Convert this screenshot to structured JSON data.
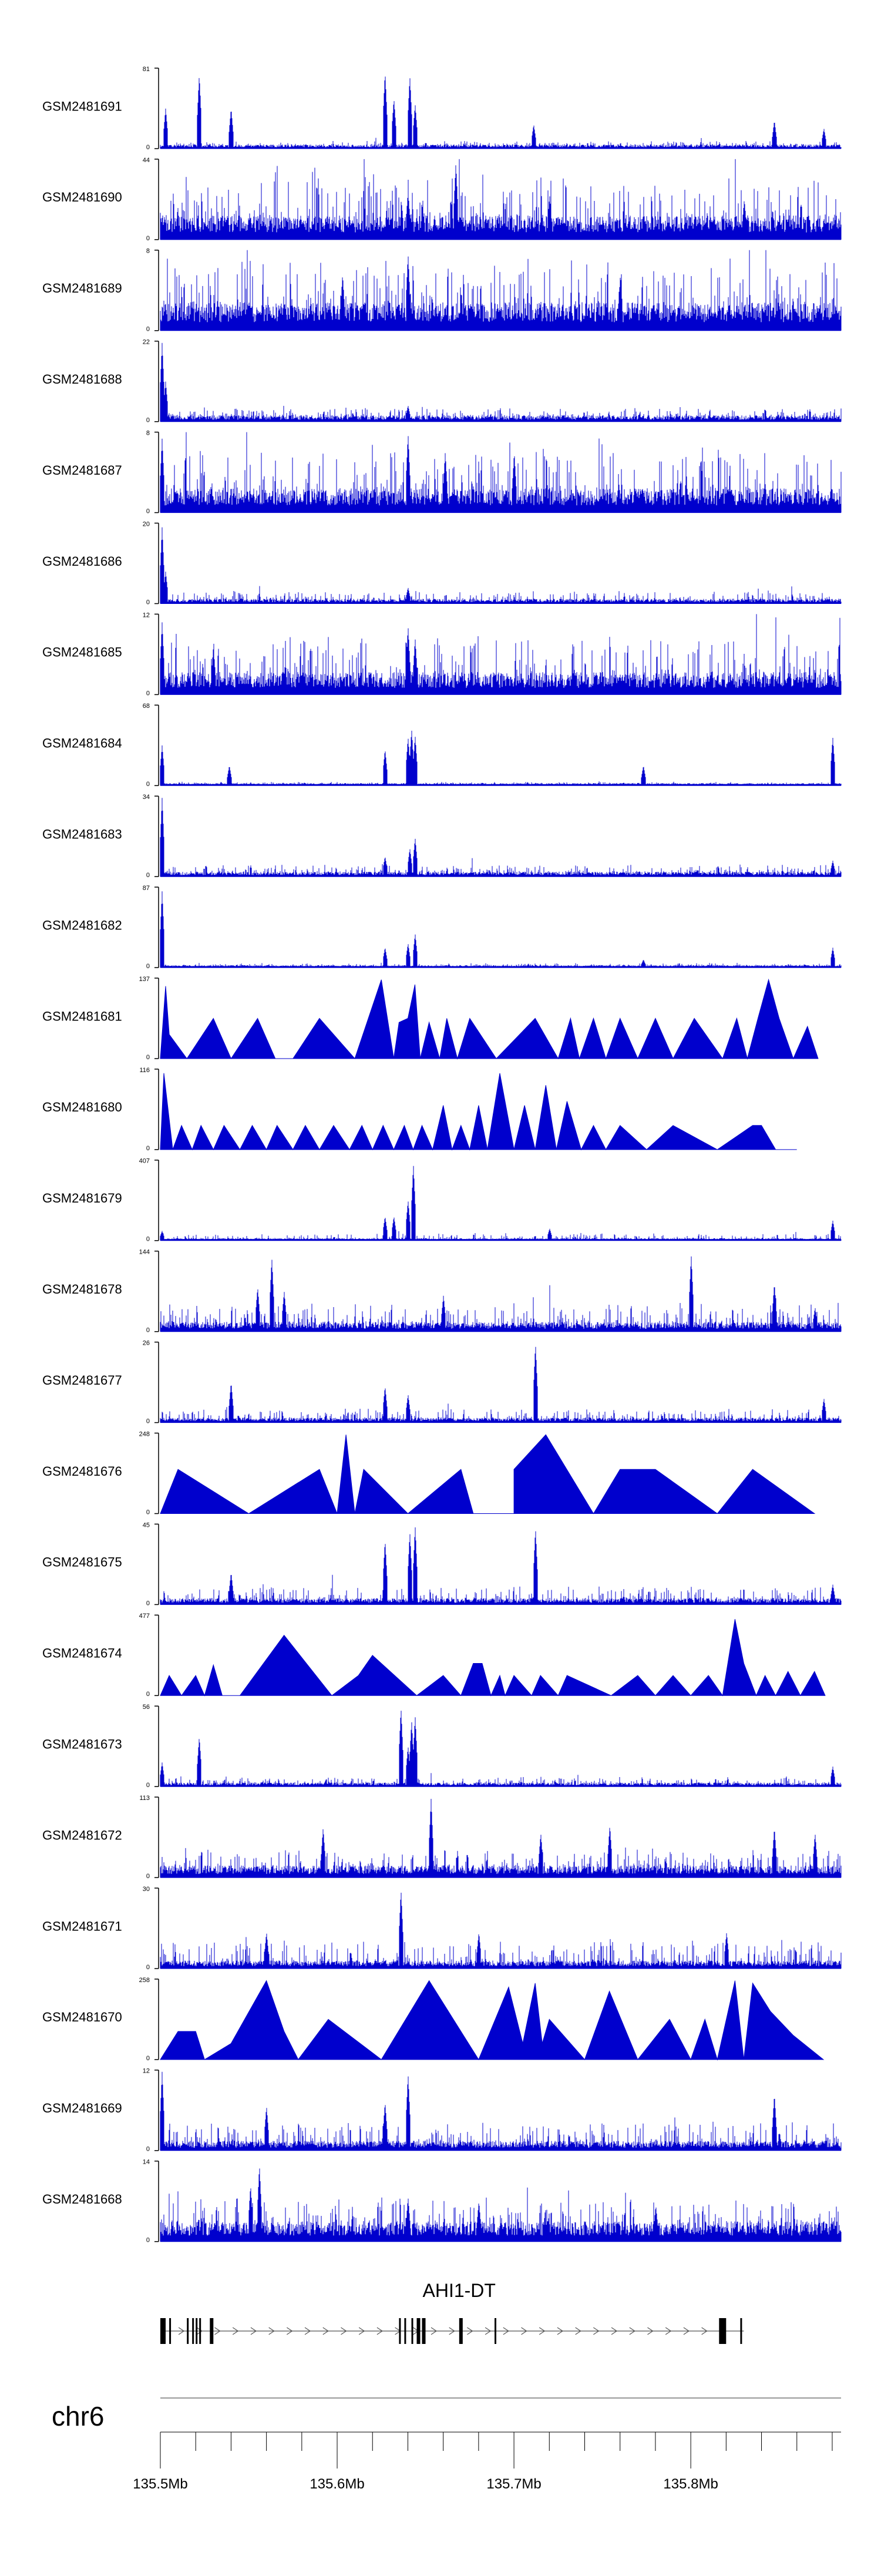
{
  "chart_data": {
    "type": "area",
    "genome_region": {
      "chromosome": "chr6",
      "xlim_mb": [
        135.5,
        135.885
      ],
      "tick_labels": [
        "135.5Mb",
        "135.6Mb",
        "135.7Mb",
        "135.8Mb"
      ],
      "tick_values_mb": [
        135.5,
        135.6,
        135.7,
        135.8
      ]
    },
    "gene": {
      "name": "AHI1-DT",
      "strand": "+",
      "start_mb": 135.5,
      "end_mb": 135.83,
      "exons_mb": [
        [
          135.5,
          135.503
        ],
        [
          135.505,
          135.506
        ],
        [
          135.515,
          135.516
        ],
        [
          135.518,
          135.519
        ],
        [
          135.52,
          135.521
        ],
        [
          135.522,
          135.523
        ],
        [
          135.528,
          135.53
        ],
        [
          135.635,
          135.636
        ],
        [
          135.638,
          135.639
        ],
        [
          135.642,
          135.643
        ],
        [
          135.645,
          135.647
        ],
        [
          135.648,
          135.65
        ],
        [
          135.669,
          135.671
        ],
        [
          135.689,
          135.69
        ],
        [
          135.816,
          135.82
        ],
        [
          135.828,
          135.829
        ]
      ]
    },
    "tracks": [
      {
        "name": "GSM2481691",
        "ymax_label": "81",
        "ymin_label": "0",
        "style": "dense",
        "bg": 0.05,
        "noise": 0.05,
        "peaks": [
          [
            135.503,
            0.5
          ],
          [
            135.522,
            0.92
          ],
          [
            135.54,
            0.5
          ],
          [
            135.627,
            0.95
          ],
          [
            135.632,
            0.62
          ],
          [
            135.641,
            0.9
          ],
          [
            135.644,
            0.55
          ],
          [
            135.711,
            0.3
          ],
          [
            135.847,
            0.35
          ],
          [
            135.875,
            0.25
          ]
        ],
        "seed": 11
      },
      {
        "name": "GSM2481690",
        "ymax_label": "44",
        "ymin_label": "0",
        "style": "dense",
        "bg": 0.3,
        "noise": 0.55,
        "peaks": [
          [
            135.667,
            0.95
          ],
          [
            135.64,
            0.6
          ],
          [
            135.72,
            0.55
          ],
          [
            135.83,
            0.5
          ]
        ],
        "seed": 12
      },
      {
        "name": "GSM2481689",
        "ymax_label": "8",
        "ymin_label": "0",
        "style": "dense",
        "bg": 0.35,
        "noise": 0.6,
        "peaks": [
          [
            135.64,
            0.95
          ],
          [
            135.603,
            0.7
          ],
          [
            135.76,
            0.7
          ]
        ],
        "seed": 13
      },
      {
        "name": "GSM2481688",
        "ymax_label": "22",
        "ymin_label": "0",
        "style": "dense",
        "bg": 0.08,
        "noise": 0.1,
        "peaks": [
          [
            135.501,
            0.98
          ],
          [
            135.503,
            0.5
          ],
          [
            135.64,
            0.2
          ]
        ],
        "seed": 14
      },
      {
        "name": "GSM2481687",
        "ymax_label": "8",
        "ymin_label": "0",
        "style": "dense",
        "bg": 0.3,
        "noise": 0.55,
        "peaks": [
          [
            135.501,
            0.92
          ],
          [
            135.64,
            0.98
          ],
          [
            135.661,
            0.75
          ],
          [
            135.7,
            0.75
          ]
        ],
        "seed": 15
      },
      {
        "name": "GSM2481686",
        "ymax_label": "20",
        "ymin_label": "0",
        "style": "dense",
        "bg": 0.06,
        "noise": 0.1,
        "peaks": [
          [
            135.501,
            0.95
          ],
          [
            135.503,
            0.4
          ],
          [
            135.64,
            0.2
          ]
        ],
        "seed": 16
      },
      {
        "name": "GSM2481685",
        "ymax_label": "12",
        "ymin_label": "0",
        "style": "dense",
        "bg": 0.28,
        "noise": 0.5,
        "peaks": [
          [
            135.501,
            0.9
          ],
          [
            135.64,
            0.85
          ],
          [
            135.644,
            0.7
          ],
          [
            135.53,
            0.6
          ]
        ],
        "seed": 17
      },
      {
        "name": "GSM2481684",
        "ymax_label": "68",
        "ymin_label": "0",
        "style": "dense",
        "bg": 0.03,
        "noise": 0.02,
        "peaks": [
          [
            135.501,
            0.5
          ],
          [
            135.539,
            0.25
          ],
          [
            135.627,
            0.45
          ],
          [
            135.64,
            0.6
          ],
          [
            135.642,
            0.7
          ],
          [
            135.644,
            0.62
          ],
          [
            135.773,
            0.25
          ],
          [
            135.88,
            0.6
          ]
        ],
        "seed": 18
      },
      {
        "name": "GSM2481683",
        "ymax_label": "34",
        "ymin_label": "0",
        "style": "dense",
        "bg": 0.06,
        "noise": 0.1,
        "peaks": [
          [
            135.501,
            0.98
          ],
          [
            135.627,
            0.25
          ],
          [
            135.641,
            0.35
          ],
          [
            135.644,
            0.48
          ],
          [
            135.88,
            0.2
          ]
        ],
        "seed": 19
      },
      {
        "name": "GSM2481682",
        "ymax_label": "87",
        "ymin_label": "0",
        "style": "dense",
        "bg": 0.03,
        "noise": 0.03,
        "peaks": [
          [
            135.501,
            0.95
          ],
          [
            135.627,
            0.25
          ],
          [
            135.64,
            0.3
          ],
          [
            135.644,
            0.42
          ],
          [
            135.773,
            0.1
          ],
          [
            135.88,
            0.25
          ]
        ],
        "seed": 20
      },
      {
        "name": "GSM2481681",
        "ymax_label": "137",
        "ymin_label": "0",
        "style": "sparse",
        "x": [
          135.5,
          135.503,
          135.505,
          135.515,
          135.53,
          135.54,
          135.555,
          135.565,
          135.575,
          135.59,
          135.61,
          135.625,
          135.632,
          135.635,
          135.64,
          135.644,
          135.647,
          135.652,
          135.658,
          135.662,
          135.668,
          135.675,
          135.69,
          135.712,
          135.725,
          135.732,
          135.737,
          135.745,
          135.752,
          135.76,
          135.77,
          135.78,
          135.79,
          135.802,
          135.818,
          135.826,
          135.832,
          135.838,
          135.844,
          135.85,
          135.858,
          135.866,
          135.872
        ],
        "y": [
          0,
          0.9,
          0.3,
          0,
          0.5,
          0,
          0.5,
          0,
          0,
          0.5,
          0,
          0.98,
          0,
          0.45,
          0.5,
          0.92,
          0,
          0.45,
          0,
          0.5,
          0,
          0.5,
          0,
          0.5,
          0,
          0.5,
          0,
          0.5,
          0,
          0.5,
          0,
          0.5,
          0,
          0.5,
          0,
          0.5,
          0,
          0.5,
          0.98,
          0.5,
          0,
          0.4,
          0
        ]
      },
      {
        "name": "GSM2481680",
        "ymax_label": "116",
        "ymin_label": "0",
        "style": "sparse",
        "x": [
          135.5,
          135.502,
          135.507,
          135.512,
          135.518,
          135.523,
          135.53,
          135.536,
          135.545,
          135.552,
          135.56,
          135.566,
          135.575,
          135.582,
          135.59,
          135.598,
          135.607,
          135.614,
          135.62,
          135.626,
          135.632,
          135.638,
          135.643,
          135.648,
          135.654,
          135.66,
          135.665,
          135.67,
          135.675,
          135.68,
          135.685,
          135.692,
          135.7,
          135.706,
          135.712,
          135.718,
          135.724,
          135.73,
          135.738,
          135.745,
          135.752,
          135.76,
          135.775,
          135.79,
          135.815,
          135.835,
          135.84,
          135.848,
          135.86
        ],
        "y": [
          0,
          0.95,
          0,
          0.3,
          0,
          0.3,
          0,
          0.3,
          0,
          0.3,
          0,
          0.3,
          0,
          0.3,
          0,
          0.3,
          0,
          0.3,
          0,
          0.3,
          0,
          0.3,
          0,
          0.3,
          0,
          0.55,
          0,
          0.3,
          0,
          0.55,
          0,
          0.95,
          0,
          0.55,
          0,
          0.8,
          0,
          0.6,
          0,
          0.3,
          0,
          0.3,
          0,
          0.3,
          0,
          0.3,
          0.3,
          0,
          0
        ]
      },
      {
        "name": "GSM2481679",
        "ymax_label": "407",
        "ymin_label": "0",
        "style": "dense",
        "bg": 0.03,
        "noise": 0.06,
        "peaks": [
          [
            135.501,
            0.12
          ],
          [
            135.64,
            0.5
          ],
          [
            135.643,
            0.95
          ],
          [
            135.627,
            0.3
          ],
          [
            135.632,
            0.3
          ],
          [
            135.72,
            0.15
          ],
          [
            135.88,
            0.25
          ]
        ],
        "seed": 21
      },
      {
        "name": "GSM2481678",
        "ymax_label": "144",
        "ymin_label": "0",
        "style": "dense",
        "bg": 0.12,
        "noise": 0.25,
        "peaks": [
          [
            135.563,
            0.92
          ],
          [
            135.555,
            0.55
          ],
          [
            135.57,
            0.5
          ],
          [
            135.66,
            0.45
          ],
          [
            135.8,
            0.95
          ],
          [
            135.847,
            0.6
          ],
          [
            135.87,
            0.3
          ]
        ],
        "seed": 22
      },
      {
        "name": "GSM2481677",
        "ymax_label": "26",
        "ymin_label": "0",
        "style": "dense",
        "bg": 0.06,
        "noise": 0.12,
        "peaks": [
          [
            135.712,
            0.98
          ],
          [
            135.54,
            0.5
          ],
          [
            135.627,
            0.45
          ],
          [
            135.64,
            0.35
          ],
          [
            135.875,
            0.3
          ]
        ],
        "seed": 23
      },
      {
        "name": "GSM2481676",
        "ymax_label": "248",
        "ymin_label": "0",
        "style": "sparse",
        "x": [
          135.5,
          135.51,
          135.55,
          135.59,
          135.6,
          135.605,
          135.61,
          135.615,
          135.64,
          135.67,
          135.677,
          135.7,
          135.7,
          135.718,
          135.745,
          135.76,
          135.78,
          135.815,
          135.835,
          135.87
        ],
        "y": [
          0,
          0.55,
          0,
          0.55,
          0,
          0.98,
          0,
          0.55,
          0,
          0.55,
          0,
          0,
          0.55,
          0.98,
          0,
          0.55,
          0.55,
          0,
          0.55,
          0
        ]
      },
      {
        "name": "GSM2481675",
        "ymax_label": "45",
        "ymin_label": "0",
        "style": "dense",
        "bg": 0.08,
        "noise": 0.15,
        "peaks": [
          [
            135.627,
            0.8
          ],
          [
            135.641,
            0.9
          ],
          [
            135.644,
            0.98
          ],
          [
            135.712,
            0.95
          ],
          [
            135.54,
            0.4
          ],
          [
            135.88,
            0.25
          ]
        ],
        "seed": 24
      },
      {
        "name": "GSM2481674",
        "ymax_label": "477",
        "ymin_label": "0",
        "style": "sparse",
        "x": [
          135.5,
          135.505,
          135.512,
          135.52,
          135.525,
          135.53,
          135.535,
          135.545,
          135.57,
          135.597,
          135.612,
          135.62,
          135.645,
          135.66,
          135.67,
          135.677,
          135.682,
          135.687,
          135.692,
          135.695,
          135.7,
          135.71,
          135.715,
          135.725,
          135.73,
          135.755,
          135.77,
          135.78,
          135.79,
          135.8,
          135.81,
          135.818,
          135.825,
          135.83,
          135.837,
          135.842,
          135.848,
          135.855,
          135.862,
          135.87,
          135.876
        ],
        "y": [
          0,
          0.25,
          0,
          0.25,
          0,
          0.38,
          0,
          0,
          0.75,
          0,
          0.25,
          0.5,
          0,
          0.25,
          0,
          0.4,
          0.4,
          0,
          0.25,
          0,
          0.25,
          0,
          0.25,
          0,
          0.25,
          0,
          0.25,
          0,
          0.25,
          0,
          0.25,
          0,
          0.95,
          0.4,
          0,
          0.25,
          0,
          0.3,
          0,
          0.3,
          0
        ]
      },
      {
        "name": "GSM2481673",
        "ymax_label": "56",
        "ymin_label": "0",
        "style": "dense",
        "bg": 0.05,
        "noise": 0.08,
        "peaks": [
          [
            135.501,
            0.3
          ],
          [
            135.522,
            0.62
          ],
          [
            135.636,
            0.98
          ],
          [
            135.642,
            0.82
          ],
          [
            135.644,
            0.88
          ],
          [
            135.64,
            0.5
          ],
          [
            135.88,
            0.25
          ]
        ],
        "seed": 25
      },
      {
        "name": "GSM2481672",
        "ymax_label": "113",
        "ymin_label": "0",
        "style": "dense",
        "bg": 0.15,
        "noise": 0.22,
        "peaks": [
          [
            135.653,
            0.98
          ],
          [
            135.592,
            0.62
          ],
          [
            135.715,
            0.55
          ],
          [
            135.754,
            0.65
          ],
          [
            135.847,
            0.62
          ],
          [
            135.87,
            0.55
          ]
        ],
        "seed": 26
      },
      {
        "name": "GSM2481671",
        "ymax_label": "30",
        "ymin_label": "0",
        "style": "dense",
        "bg": 0.1,
        "noise": 0.25,
        "peaks": [
          [
            135.636,
            0.98
          ],
          [
            135.56,
            0.45
          ],
          [
            135.68,
            0.45
          ],
          [
            135.82,
            0.45
          ]
        ],
        "seed": 27
      },
      {
        "name": "GSM2481670",
        "ymax_label": "258",
        "ymin_label": "0",
        "style": "sparse",
        "x": [
          135.5,
          135.51,
          135.52,
          135.525,
          135.54,
          135.56,
          135.57,
          135.578,
          135.595,
          135.625,
          135.652,
          135.68,
          135.697,
          135.705,
          135.712,
          135.716,
          135.72,
          135.74,
          135.754,
          135.77,
          135.788,
          135.8,
          135.808,
          135.815,
          135.825,
          135.83,
          135.835,
          135.845,
          135.858,
          135.875
        ],
        "y": [
          0,
          0.35,
          0.35,
          0,
          0.2,
          0.98,
          0.35,
          0,
          0.5,
          0,
          0.98,
          0,
          0.9,
          0.2,
          0.95,
          0.2,
          0.5,
          0,
          0.85,
          0,
          0.5,
          0,
          0.5,
          0,
          0.98,
          0,
          0.95,
          0.6,
          0.3,
          0
        ]
      },
      {
        "name": "GSM2481669",
        "ymax_label": "12",
        "ymin_label": "0",
        "style": "dense",
        "bg": 0.12,
        "noise": 0.25,
        "peaks": [
          [
            135.501,
            0.98
          ],
          [
            135.64,
            0.95
          ],
          [
            135.627,
            0.6
          ],
          [
            135.847,
            0.7
          ],
          [
            135.56,
            0.55
          ]
        ],
        "seed": 28
      },
      {
        "name": "GSM2481668",
        "ymax_label": "14",
        "ymin_label": "0",
        "style": "dense",
        "bg": 0.25,
        "noise": 0.35,
        "peaks": [
          [
            135.556,
            0.95
          ],
          [
            135.551,
            0.7
          ],
          [
            135.64,
            0.55
          ],
          [
            135.68,
            0.5
          ],
          [
            135.78,
            0.45
          ]
        ],
        "seed": 29
      }
    ]
  },
  "colors": {
    "signal": "#0000cd",
    "axis": "#000000",
    "text": "#000000",
    "gene": "#000000",
    "chrom_line": "#999999"
  }
}
